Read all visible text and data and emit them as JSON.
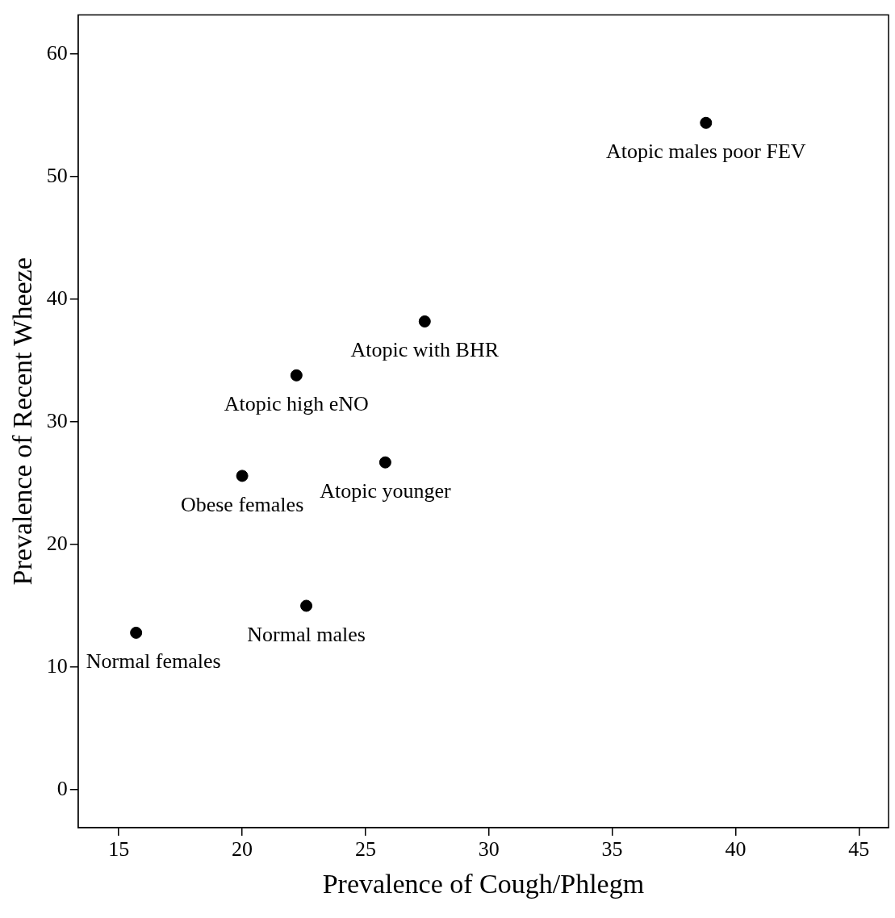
{
  "chart_data": {
    "type": "scatter",
    "xlabel": "Prevalence of Cough/Phlegm",
    "ylabel": "Prevalence of Recent Wheeze",
    "xlim": [
      13.35,
      46.2
    ],
    "xticks": [
      15,
      20,
      25,
      30,
      35,
      40,
      45
    ],
    "ylim": [
      -3.1,
      63.2
    ],
    "yticks": [
      0,
      10,
      20,
      30,
      40,
      50,
      60
    ],
    "grid": false,
    "legend": false,
    "marker": "circle",
    "series": [
      {
        "color": "#000000",
        "x": [
          38.8,
          27.4,
          22.2,
          20.0,
          25.8,
          22.6,
          15.7
        ],
        "values": [
          54.4,
          38.2,
          33.8,
          25.6,
          26.7,
          15.0,
          12.8
        ]
      }
    ],
    "annotations": [
      {
        "text": "Atopic males poor FEV",
        "x": 38.8,
        "y": 54.4
      },
      {
        "text": "Atopic with BHR",
        "x": 27.4,
        "y": 38.2
      },
      {
        "text": "Atopic high eNO",
        "x": 22.2,
        "y": 33.8
      },
      {
        "text": "Obese females",
        "x": 20.0,
        "y": 25.6
      },
      {
        "text": "Atopic younger",
        "x": 25.8,
        "y": 26.7
      },
      {
        "text": "Normal males",
        "x": 22.6,
        "y": 15.0
      },
      {
        "text": "Normal females",
        "x": 15.7,
        "y": 12.8
      }
    ]
  }
}
